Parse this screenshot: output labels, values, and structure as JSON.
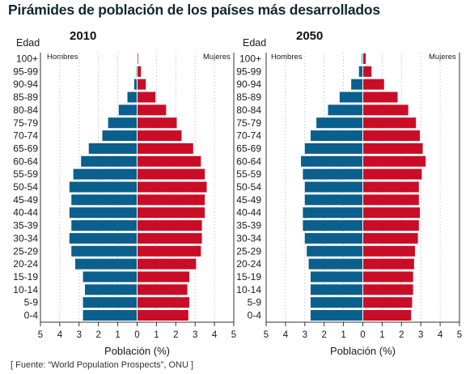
{
  "title": "Pirámides de población de los países más desarrollados",
  "source": "[ Fuente: “World Population Prospects”, ONU ]",
  "colors": {
    "male": "#0a5f8c",
    "female": "#c90d26",
    "axis": "#333333",
    "grid": "#bbbbbb"
  },
  "chart_data": [
    {
      "type": "bar",
      "title": "2010",
      "ylabel": "Edad",
      "xlabel": "Población (%)",
      "xlim": [
        -5,
        5
      ],
      "xticks": [
        5,
        4,
        3,
        2,
        1,
        0,
        1,
        2,
        3,
        4,
        5
      ],
      "left_label": "Hombres",
      "right_label": "Mujeres",
      "categories": [
        "0-4",
        "5-9",
        "10-14",
        "15-19",
        "20-24",
        "25-29",
        "30-34",
        "35-39",
        "40-44",
        "45-49",
        "50-54",
        "55-59",
        "60-64",
        "65-69",
        "70-74",
        "75-79",
        "80-84",
        "85-89",
        "90-94",
        "95-99",
        "100+"
      ],
      "series": [
        {
          "name": "Hombres",
          "values": [
            2.8,
            2.8,
            2.7,
            2.8,
            3.2,
            3.4,
            3.5,
            3.4,
            3.5,
            3.4,
            3.5,
            3.3,
            2.9,
            2.5,
            1.8,
            1.5,
            0.95,
            0.5,
            0.15,
            0.04,
            0.01
          ]
        },
        {
          "name": "Mujeres",
          "values": [
            2.65,
            2.7,
            2.6,
            2.7,
            3.05,
            3.3,
            3.35,
            3.35,
            3.5,
            3.5,
            3.6,
            3.5,
            3.3,
            2.9,
            2.3,
            2.05,
            1.5,
            0.95,
            0.45,
            0.2,
            0.05
          ]
        }
      ]
    },
    {
      "type": "bar",
      "title": "2050",
      "ylabel": "Edad",
      "xlabel": "Población (%)",
      "xlim": [
        -5,
        5
      ],
      "xticks": [
        5,
        4,
        3,
        2,
        1,
        0,
        1,
        2,
        3,
        4,
        5
      ],
      "left_label": "Hombres",
      "right_label": "Mujeres",
      "categories": [
        "0-4",
        "5-9",
        "10-14",
        "15-19",
        "20-24",
        "25-29",
        "30-34",
        "35-39",
        "40-44",
        "45-49",
        "50-54",
        "55-59",
        "60-64",
        "65-69",
        "70-74",
        "75-79",
        "80-84",
        "85-89",
        "90-94",
        "95-99",
        "100+"
      ],
      "series": [
        {
          "name": "Hombres",
          "values": [
            2.7,
            2.7,
            2.7,
            2.7,
            2.8,
            2.9,
            3.0,
            3.1,
            3.1,
            3.0,
            3.0,
            3.1,
            3.2,
            3.0,
            2.7,
            2.4,
            1.8,
            1.2,
            0.6,
            0.2,
            0.05
          ]
        },
        {
          "name": "Mujeres",
          "values": [
            2.5,
            2.55,
            2.6,
            2.6,
            2.65,
            2.7,
            2.85,
            2.9,
            2.95,
            2.9,
            2.9,
            3.05,
            3.25,
            3.1,
            2.95,
            2.75,
            2.35,
            1.8,
            1.1,
            0.45,
            0.15
          ]
        }
      ]
    }
  ]
}
